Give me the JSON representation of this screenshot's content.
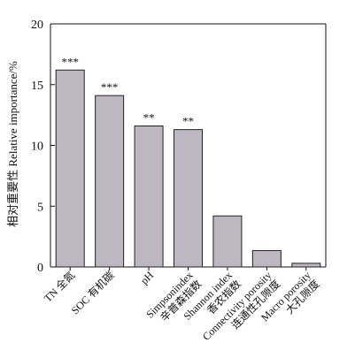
{
  "chart_data": {
    "type": "bar",
    "title": "",
    "xlabel": "",
    "ylabel": "相对重要性 Relative importance/%",
    "ylim": [
      0,
      20
    ],
    "yticks": [
      0,
      5,
      10,
      15,
      20
    ],
    "grid": false,
    "bar_color": "#bcb7c0",
    "bar_edge_color": "#222222",
    "categories": [
      {
        "en": "TN",
        "zh": "全氮",
        "label": "TN 全氮"
      },
      {
        "en": "SOC",
        "zh": "有机碳",
        "label": "SOC 有机碳"
      },
      {
        "en": "pH",
        "zh": "",
        "label": "pH"
      },
      {
        "en": "Simpsonindex",
        "zh": "辛普森指数",
        "label": "Simpsonindex 辛普森指数"
      },
      {
        "en": "Shannon index",
        "zh": "香农指数",
        "label": "Shannon index 香农指数"
      },
      {
        "en": "Connectivity porosity",
        "zh": "连通性孔隙度",
        "label": "Connectivity porosity 连通性孔隙度"
      },
      {
        "en": "Macro porosity",
        "zh": "大孔隙度",
        "label": "Macro porosity 大孔隙度"
      }
    ],
    "values": [
      16.2,
      14.1,
      11.6,
      11.3,
      4.2,
      1.35,
      0.3
    ],
    "significance": [
      "***",
      "***",
      "**",
      "**",
      "",
      "",
      ""
    ]
  }
}
